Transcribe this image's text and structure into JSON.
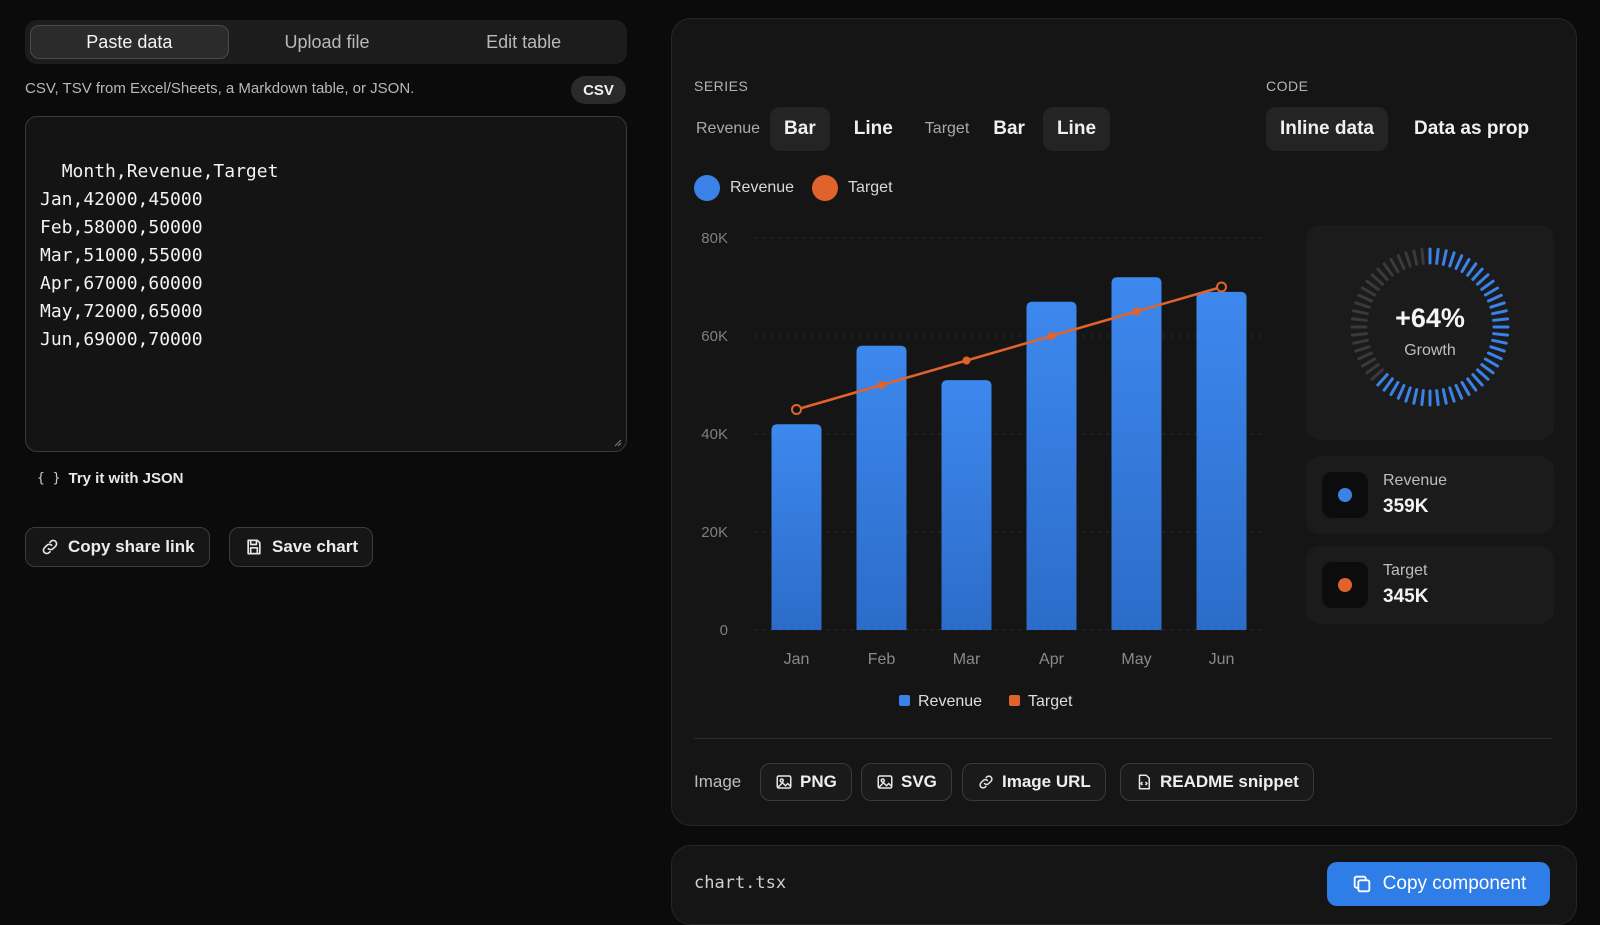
{
  "tabs": [
    "Paste data",
    "Upload file",
    "Edit table"
  ],
  "active_tab": "Paste data",
  "hint": "CSV, TSV from Excel/Sheets, a Markdown table, or JSON.",
  "format_badge": "CSV",
  "editor_text": "Month,Revenue,Target\nJan,42000,45000\nFeb,58000,50000\nMar,51000,55000\nApr,67000,60000\nMay,72000,65000\nJun,69000,70000",
  "try_json": {
    "braces": "{ }",
    "label": "Try it with JSON"
  },
  "actions": {
    "copy_share": "Copy share link",
    "save_chart": "Save chart"
  },
  "series_section": {
    "title": "SERIES",
    "revenue_label": "Revenue",
    "target_label": "Target",
    "options": [
      "Bar",
      "Line"
    ]
  },
  "code_section": {
    "title": "CODE",
    "options": [
      "Inline data",
      "Data as prop"
    ]
  },
  "legend_top": [
    "Revenue",
    "Target"
  ],
  "colors": {
    "revenue": "#3b82e8",
    "target": "#e0632c",
    "accent": "#2f7de6"
  },
  "chart_data": {
    "type": "bar",
    "categories": [
      "Jan",
      "Feb",
      "Mar",
      "Apr",
      "May",
      "Jun"
    ],
    "series": [
      {
        "name": "Revenue",
        "type": "bar",
        "values": [
          42000,
          58000,
          51000,
          67000,
          72000,
          69000
        ]
      },
      {
        "name": "Target",
        "type": "line",
        "values": [
          45000,
          50000,
          55000,
          60000,
          65000,
          70000
        ]
      }
    ],
    "ylim": [
      0,
      80000
    ],
    "yticks": [
      "0",
      "20K",
      "40K",
      "60K",
      "80K"
    ],
    "grid": true,
    "legend": "bottom"
  },
  "growth": {
    "value": "+64%",
    "label": "Growth",
    "fraction": 0.64
  },
  "stats": [
    {
      "name": "Revenue",
      "value": "359K"
    },
    {
      "name": "Target",
      "value": "345K"
    }
  ],
  "export": {
    "label": "Image",
    "buttons": [
      "PNG",
      "SVG",
      "Image URL",
      "README snippet"
    ]
  },
  "code_file": {
    "filename": "chart.tsx",
    "copy_label": "Copy component"
  }
}
